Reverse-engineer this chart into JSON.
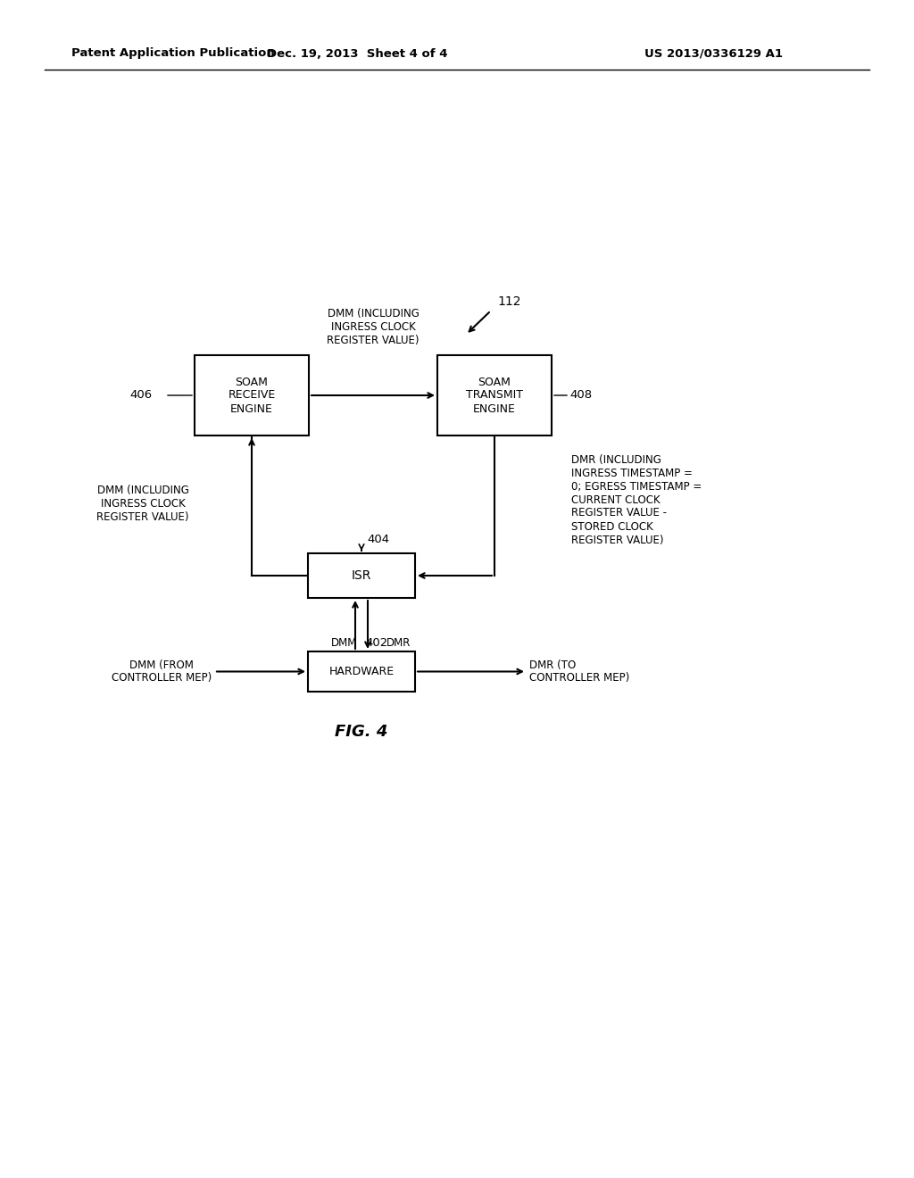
{
  "bg_color": "#ffffff",
  "header_left": "Patent Application Publication",
  "header_mid": "Dec. 19, 2013  Sheet 4 of 4",
  "header_right": "US 2013/0336129 A1",
  "fig_label": "FIG. 4",
  "label_112": "112",
  "label_402": "402",
  "label_404": "404",
  "label_406": "406",
  "label_408": "408",
  "box_soam_receive": "SOAM\nRECEIVE\nENGINE",
  "box_soam_transmit": "SOAM\nTRANSMIT\nENGINE",
  "box_isr": "ISR",
  "box_hardware": "HARDWARE",
  "text_dmm_top": "DMM (INCLUDING\nINGRESS CLOCK\nREGISTER VALUE)",
  "text_dmm_left": "DMM (INCLUDING\nINGRESS CLOCK\nREGISTER VALUE)",
  "text_dmr_right": "DMR (INCLUDING\nINGRESS TIMESTAMP =\n0; EGRESS TIMESTAMP =\nCURRENT CLOCK\nREGISTER VALUE -\nSTORED CLOCK\nREGISTER VALUE)",
  "text_dmm_bottom_left": "DMM (FROM\nCONTROLLER MEP)",
  "text_dmr_bottom_right": "DMR (TO\nCONTROLLER MEP)",
  "text_dmm_label": "DMM",
  "text_dmr_label": "DMR"
}
